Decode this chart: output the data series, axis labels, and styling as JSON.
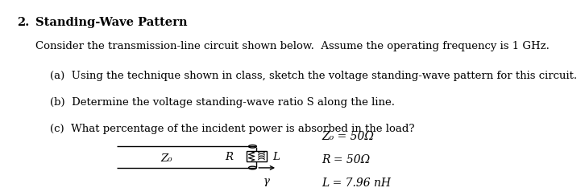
{
  "title_number": "2.",
  "title_bold": "Standing-Wave Pattern",
  "intro": "Consider the transmission-line circuit shown below.  Assume the operating frequency is 1 GHz.",
  "item_a": "(a)  Using the technique shown in class, sketch the voltage standing-wave pattern for this circuit.",
  "item_b": "(b)  Determine the voltage standing-wave ratio S along the line.",
  "item_c": "(c)  What percentage of the incident power is absorbed in the load?",
  "ann1": "Z₀ = 50Ω",
  "ann2": "R = 50Ω",
  "ann3": "L = 7.96 nH",
  "Z0_label": "Z₀",
  "R_label": "R",
  "L_label": "L",
  "gamma_label": "γ",
  "bg_color": "#ffffff",
  "text_color": "#000000"
}
